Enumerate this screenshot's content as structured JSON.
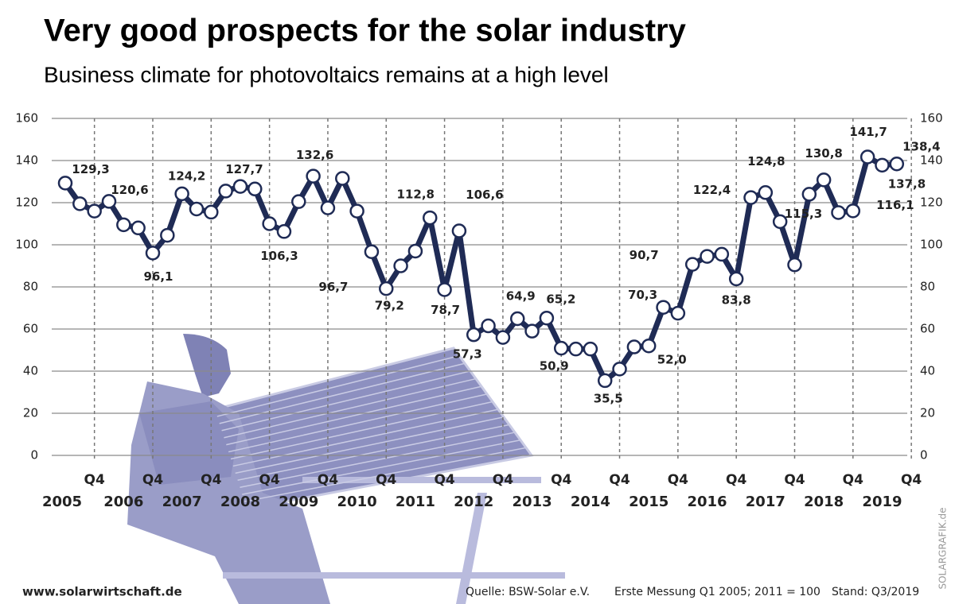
{
  "chart_data": {
    "type": "line",
    "title": "Very good prospects for the solar industry",
    "subtitle": "Business climate for photovoltaics remains at a high level",
    "categories": [
      null,
      null,
      null,
      null,
      null,
      null,
      null,
      null,
      null,
      null,
      null,
      null,
      null,
      null,
      null,
      null,
      null,
      null,
      null,
      null,
      null,
      null,
      null,
      null,
      null,
      null,
      null,
      null,
      null,
      null,
      null,
      null,
      null,
      null,
      null,
      null,
      null,
      null,
      null,
      null,
      null,
      null,
      null,
      null,
      null,
      null,
      null,
      null,
      null,
      null,
      null,
      null,
      null,
      null,
      null,
      null,
      null,
      null
    ],
    "values": [
      129.3,
      119.5,
      116,
      120.6,
      109.5,
      108,
      96.1,
      104.5,
      124.2,
      117,
      115.5,
      125.5,
      127.7,
      126.5,
      110,
      106.3,
      120.5,
      132.6,
      117.5,
      131.5,
      116,
      96.7,
      79.2,
      90,
      97,
      112.8,
      78.7,
      106.6,
      57.3,
      61.5,
      56,
      64.9,
      59,
      65.2,
      50.9,
      50.5,
      50.5,
      35.5,
      41,
      51.5,
      52.0,
      70.3,
      67.5,
      90.7,
      94.5,
      95.5,
      83.8,
      122.4,
      124.8,
      111,
      90.5,
      124,
      130.8,
      115.3,
      116.1,
      141.7,
      137.8,
      138.4
    ],
    "value_labels": [
      "129,3",
      null,
      null,
      "120,6",
      null,
      null,
      "96,1",
      null,
      "124,2",
      null,
      null,
      null,
      "127,7",
      null,
      null,
      "106,3",
      null,
      "132,6",
      null,
      null,
      null,
      "96,7",
      "79,2",
      null,
      null,
      "112,8",
      "78,7",
      "106,6",
      "57,3",
      null,
      null,
      "64,9",
      null,
      "65,2",
      "50,9",
      null,
      null,
      "35,5",
      null,
      null,
      "52,0",
      "70,3",
      null,
      "90,7",
      null,
      null,
      "83,8",
      "122,4",
      "124,8",
      null,
      null,
      null,
      "130,8",
      "115,3",
      "116,1",
      "141,7",
      "137,8",
      "138,4"
    ],
    "color": "#1f2b55",
    "ylim": [
      0,
      160
    ],
    "yticks": [
      0,
      20,
      40,
      60,
      80,
      100,
      120,
      140,
      160
    ],
    "y2lim": [
      0,
      160
    ],
    "y2ticks": [
      0,
      20,
      40,
      60,
      80,
      100,
      120,
      140,
      160
    ],
    "grid": true,
    "x_quarter_labels": [
      "Q4",
      "Q4",
      "Q4",
      "Q4",
      "Q4",
      "Q4",
      "Q4",
      "Q4",
      "Q4",
      "Q4",
      "Q4",
      "Q4",
      "Q4",
      "Q4",
      "Q4"
    ],
    "x_year_labels": [
      "2005",
      "2006",
      "2007",
      "2008",
      "2009",
      "2010",
      "2011",
      "2012",
      "2013",
      "2014",
      "2015",
      "2016",
      "2017",
      "2018",
      "2019"
    ]
  },
  "footer": {
    "website": "www.solarwirtschaft.de",
    "source": "Quelle: BSW-Solar e.V.",
    "note": "Erste Messung Q1 2005; 2011 = 100",
    "status": "Stand: Q3/2019",
    "credit": "SOLARGRAFIK.de"
  }
}
